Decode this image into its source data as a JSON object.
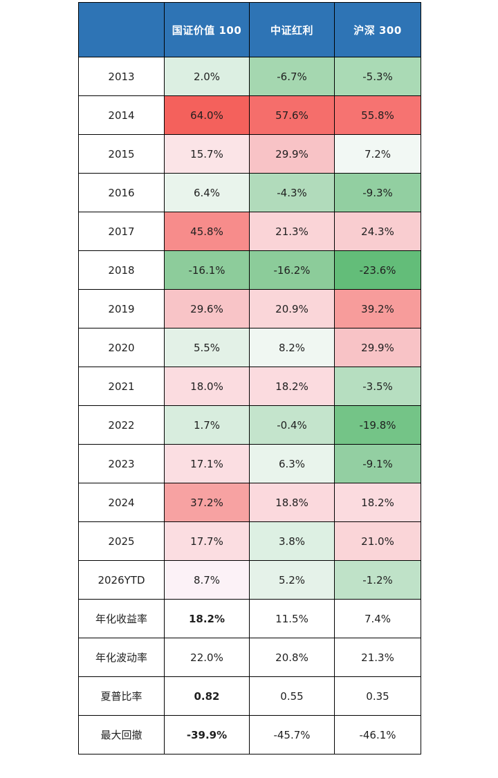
{
  "colors": {
    "header_bg": "#2E74B5",
    "header_text": "#FFFFFF",
    "border": "#000000",
    "body_text": "#1F1F1F",
    "strong_red": "#F4615C",
    "strong_green": "#63BD79"
  },
  "table": {
    "columns": [
      {
        "label": ""
      },
      {
        "label": "国证价值 100"
      },
      {
        "label": "中证红利"
      },
      {
        "label": "沪深 300"
      }
    ],
    "rows": [
      {
        "label": "2013",
        "cells": [
          {
            "text": "2.0%",
            "bg": "#DCEFE2"
          },
          {
            "text": "-6.7%",
            "bg": "#A5D7B0"
          },
          {
            "text": "-5.3%",
            "bg": "#AADAB5"
          }
        ]
      },
      {
        "label": "2014",
        "cells": [
          {
            "text": "64.0%",
            "bg": "#F4615C"
          },
          {
            "text": "57.6%",
            "bg": "#F56E6B"
          },
          {
            "text": "55.8%",
            "bg": "#F67371"
          }
        ]
      },
      {
        "label": "2015",
        "cells": [
          {
            "text": "15.7%",
            "bg": "#FBE4E7"
          },
          {
            "text": "29.9%",
            "bg": "#F8C3C6"
          },
          {
            "text": "7.2%",
            "bg": "#F2F8F4"
          }
        ]
      },
      {
        "label": "2016",
        "cells": [
          {
            "text": "6.4%",
            "bg": "#E9F4EC"
          },
          {
            "text": "-4.3%",
            "bg": "#B1DBBB"
          },
          {
            "text": "-9.3%",
            "bg": "#92CFA1"
          }
        ]
      },
      {
        "label": "2017",
        "cells": [
          {
            "text": "45.8%",
            "bg": "#F78C8B"
          },
          {
            "text": "21.3%",
            "bg": "#FAD4D7"
          },
          {
            "text": "24.3%",
            "bg": "#F9CDD0"
          }
        ]
      },
      {
        "label": "2018",
        "cells": [
          {
            "text": "-16.1%",
            "bg": "#8DCC9B"
          },
          {
            "text": "-16.2%",
            "bg": "#8CCC9A"
          },
          {
            "text": "-23.6%",
            "bg": "#63BD79"
          }
        ]
      },
      {
        "label": "2019",
        "cells": [
          {
            "text": "29.6%",
            "bg": "#F8C4C7"
          },
          {
            "text": "20.9%",
            "bg": "#FAD6D9"
          },
          {
            "text": "39.2%",
            "bg": "#F79C9B"
          }
        ]
      },
      {
        "label": "2020",
        "cells": [
          {
            "text": "5.5%",
            "bg": "#E3F1E7"
          },
          {
            "text": "8.2%",
            "bg": "#F0F7F2"
          },
          {
            "text": "29.9%",
            "bg": "#F8C3C6"
          }
        ]
      },
      {
        "label": "2021",
        "cells": [
          {
            "text": "18.0%",
            "bg": "#FBDCE0"
          },
          {
            "text": "18.2%",
            "bg": "#FBDBDF"
          },
          {
            "text": "-3.5%",
            "bg": "#B6DEC0"
          }
        ]
      },
      {
        "label": "2022",
        "cells": [
          {
            "text": "1.7%",
            "bg": "#D8EDDE"
          },
          {
            "text": "-0.4%",
            "bg": "#C4E4CC"
          },
          {
            "text": "-19.8%",
            "bg": "#74C487"
          }
        ]
      },
      {
        "label": "2023",
        "cells": [
          {
            "text": "17.1%",
            "bg": "#FBDEE2"
          },
          {
            "text": "6.3%",
            "bg": "#E9F4EC"
          },
          {
            "text": "-9.1%",
            "bg": "#93CFA2"
          }
        ]
      },
      {
        "label": "2024",
        "cells": [
          {
            "text": "37.2%",
            "bg": "#F7A2A2"
          },
          {
            "text": "18.8%",
            "bg": "#FBD9DD"
          },
          {
            "text": "18.2%",
            "bg": "#FBDBDF"
          }
        ]
      },
      {
        "label": "2025",
        "cells": [
          {
            "text": "17.7%",
            "bg": "#FBDDE1"
          },
          {
            "text": "3.8%",
            "bg": "#DDF0E3"
          },
          {
            "text": "21.0%",
            "bg": "#FAD5D8"
          }
        ]
      },
      {
        "label": "2026YTD",
        "cells": [
          {
            "text": "8.7%",
            "bg": "#FCF2F7"
          },
          {
            "text": "5.2%",
            "bg": "#E5F2E9"
          },
          {
            "text": "-1.2%",
            "bg": "#BFE2C8"
          }
        ]
      },
      {
        "label": "年化收益率",
        "cells": [
          {
            "text": "18.2%",
            "bg": "#FFFFFF",
            "bold": true
          },
          {
            "text": "11.5%",
            "bg": "#FFFFFF"
          },
          {
            "text": "7.4%",
            "bg": "#FFFFFF"
          }
        ]
      },
      {
        "label": "年化波动率",
        "cells": [
          {
            "text": "22.0%",
            "bg": "#FFFFFF"
          },
          {
            "text": "20.8%",
            "bg": "#FFFFFF"
          },
          {
            "text": "21.3%",
            "bg": "#FFFFFF"
          }
        ]
      },
      {
        "label": "夏普比率",
        "cells": [
          {
            "text": "0.82",
            "bg": "#FFFFFF",
            "bold": true
          },
          {
            "text": "0.55",
            "bg": "#FFFFFF"
          },
          {
            "text": "0.35",
            "bg": "#FFFFFF"
          }
        ]
      },
      {
        "label": "最大回撤",
        "cells": [
          {
            "text": "-39.9%",
            "bg": "#FFFFFF",
            "bold": true
          },
          {
            "text": "-45.7%",
            "bg": "#FFFFFF"
          },
          {
            "text": "-46.1%",
            "bg": "#FFFFFF"
          }
        ]
      }
    ]
  },
  "chart_data": {
    "type": "table",
    "title": "",
    "columns": [
      "国证价值 100",
      "中证红利",
      "沪深 300"
    ],
    "row_labels": [
      "2013",
      "2014",
      "2015",
      "2016",
      "2017",
      "2018",
      "2019",
      "2020",
      "2021",
      "2022",
      "2023",
      "2024",
      "2025",
      "2026YTD",
      "年化收益率",
      "年化波动率",
      "夏普比率",
      "最大回撤"
    ],
    "series": [
      {
        "name": "国证价值 100",
        "values": [
          2.0,
          64.0,
          15.7,
          6.4,
          45.8,
          -16.1,
          29.6,
          5.5,
          18.0,
          1.7,
          17.1,
          37.2,
          17.7,
          8.7,
          18.2,
          22.0,
          0.82,
          -39.9
        ]
      },
      {
        "name": "中证红利",
        "values": [
          -6.7,
          57.6,
          29.9,
          -4.3,
          21.3,
          -16.2,
          20.9,
          8.2,
          18.2,
          -0.4,
          6.3,
          18.8,
          3.8,
          5.2,
          11.5,
          20.8,
          0.55,
          -45.7
        ]
      },
      {
        "name": "沪深 300",
        "values": [
          -5.3,
          55.8,
          7.2,
          -9.3,
          24.3,
          -23.6,
          39.2,
          29.9,
          -3.5,
          -19.8,
          -9.1,
          18.2,
          21.0,
          -1.2,
          7.4,
          21.3,
          0.35,
          -46.1
        ]
      }
    ],
    "units": "percent, except 夏普比率 (ratio)",
    "layout_hints": {
      "heatmap": "yearly return cells color-scaled: red = high, white = median (~8.4%), green = low/negative",
      "stat_rows_background": "white",
      "bold_cells": "first column of 年化收益率, 夏普比率, 最大回撤"
    }
  }
}
